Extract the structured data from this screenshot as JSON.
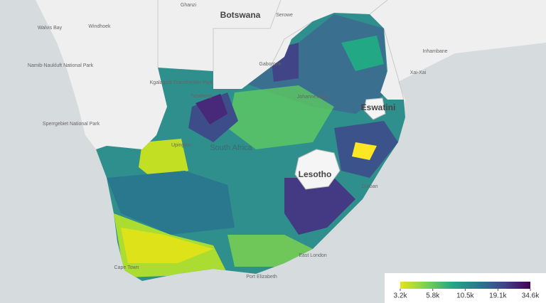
{
  "map": {
    "labels": [
      "Botswana",
      "Ghanzi",
      "Serowe",
      "Walvis Bay",
      "Windhoek",
      "Gaborone",
      "Namib-Naukluft National Park",
      "Kgalagadi Transfrontier Park",
      "Tshabong",
      "Johannesburg",
      "Eswatini",
      "Inhambane",
      "Xai-Xai",
      "Upington",
      "South Africa",
      "Lesotho",
      "Durban",
      "Sperrgebiet National Park",
      "Cape Town",
      "Port Elizabeth",
      "East London"
    ]
  },
  "legend": {
    "scale": "log",
    "clim": [
      3200,
      34600
    ],
    "colors": [
      "#e5e419",
      "#7ad151",
      "#22a884",
      "#2a788e",
      "#414487",
      "#440154"
    ],
    "ticks": [
      {
        "value": 3200,
        "label": "3.2k"
      },
      {
        "value": 5800,
        "label": "5.8k"
      },
      {
        "value": 10500,
        "label": "10.5k"
      },
      {
        "value": 19100,
        "label": "19.1k"
      },
      {
        "value": 34600,
        "label": "34.6k"
      }
    ]
  }
}
